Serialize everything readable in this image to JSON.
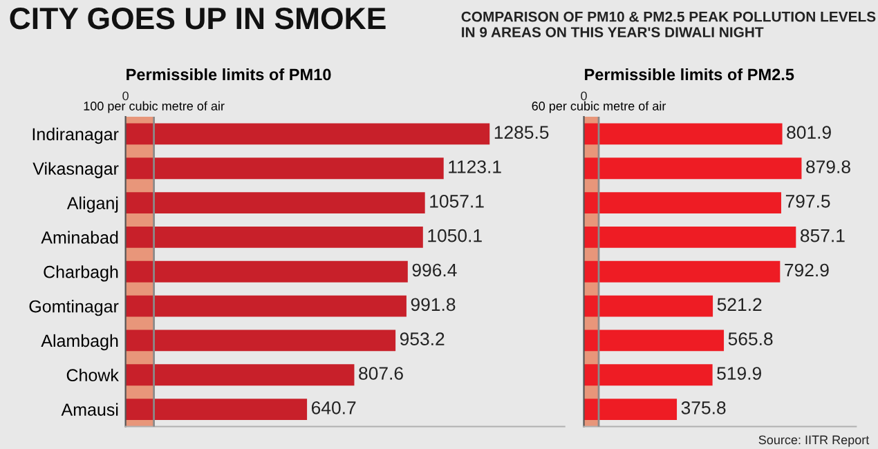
{
  "chart_data": [
    {
      "type": "bar",
      "orientation": "horizontal",
      "title": "CITY GOES UP IN SMOKE",
      "xlabel": "Permissible limits of PM10",
      "categories": [
        "Indiranagar",
        "Vikasnagar",
        "Aliganj",
        "Aminabad",
        "Charbagh",
        "Gomtinagar",
        "Alambagh",
        "Chowk",
        "Amausi"
      ],
      "values": [
        1285.5,
        1123.1,
        1057.1,
        1050.1,
        996.4,
        991.8,
        953.2,
        807.6,
        640.7
      ],
      "color": "#c8202a",
      "xlim": [
        0,
        1550
      ],
      "xticks": [
        {
          "value": 100,
          "label": "100 per cubic metre of air"
        }
      ],
      "data_labels": true,
      "bands": [
        {
          "axis": "x",
          "from": 0,
          "to": 100,
          "color": "#e8967a"
        }
      ],
      "ref_lines": [
        {
          "axis": "x",
          "value": 100,
          "color": "#8a8a8a"
        }
      ],
      "annotations": [
        "0"
      ]
    },
    {
      "type": "bar",
      "orientation": "horizontal",
      "subtitle": "COMPARISON OF PM10 & PM2.5 PEAK POLLUTION LEVELS IN 9 AREAS ON THIS YEAR'S DIWALI NIGHT",
      "xlabel": "Permissible limits of PM2.5",
      "categories": [
        null,
        null,
        null,
        null,
        null,
        null,
        null,
        null,
        null
      ],
      "values": [
        801.9,
        879.8,
        797.5,
        857.1,
        792.9,
        521.2,
        565.8,
        519.9,
        375.8
      ],
      "color": "#ee1c24",
      "xlim": [
        0,
        1100
      ],
      "xticks": [
        {
          "value": 60,
          "label": "60 per cubic metre of air"
        }
      ],
      "data_labels": true,
      "bands": [
        {
          "axis": "x",
          "from": 0,
          "to": 60,
          "color": "#e8967a"
        }
      ],
      "ref_lines": [
        {
          "axis": "x",
          "value": 60,
          "color": "#8a8a8a"
        }
      ],
      "annotations": [
        "0",
        "Source: IITR Report"
      ]
    }
  ]
}
